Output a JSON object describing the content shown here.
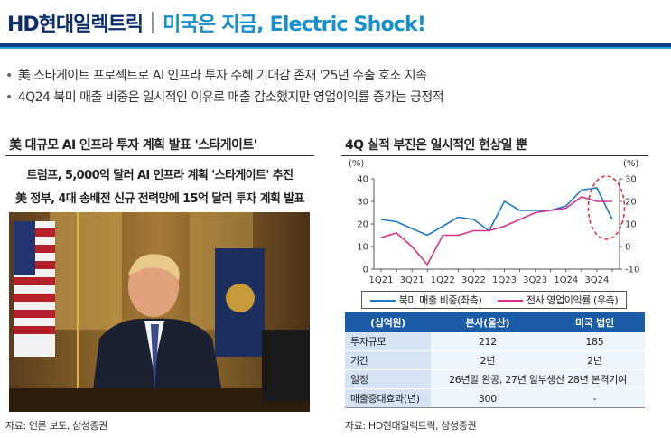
{
  "header": {
    "brand": "HD현대일렉트릭",
    "headline": "미국은 지금, Electric Shock!"
  },
  "bullets": [
    "美 스타게이트 프로젝트로 AI 인프라 투자 수혜 기대감 존재 '25년 수출 호조 지속",
    "4Q24 북미 매출 비중은 일시적인 이유로 매출 감소했지만 영업이익률 증가는 긍정적"
  ],
  "left_panel": {
    "title": "美 대규모 AI 인프라 투자 계획 발표 '스타게이트'",
    "line1": "트럼프, 5,000억 달러 AI 인프라 계획 '스타게이트' 추진",
    "line2": "美 정부, 4대 송배전 신규 전력망에 15억 달러 투자 계획 발표",
    "source": "자료: 언론 보도, 삼성증권"
  },
  "right_panel": {
    "title": "4Q 실적 부진은 일시적인 현상일 뿐",
    "source": "자료: HD현대일렉트릭, 삼성증권"
  },
  "chart_data": {
    "type": "line",
    "x": [
      "1Q21",
      "2Q21",
      "3Q21",
      "4Q21",
      "1Q22",
      "2Q22",
      "3Q22",
      "4Q22",
      "1Q23",
      "2Q23",
      "3Q23",
      "4Q23",
      "1Q24",
      "2Q24",
      "3Q24",
      "4Q24"
    ],
    "x_tick_labels": [
      "1Q21",
      "3Q21",
      "1Q22",
      "3Q22",
      "1Q23",
      "3Q23",
      "1Q24",
      "3Q24"
    ],
    "series": [
      {
        "name": "북미 매출 비중(좌측)",
        "axis": "left",
        "color": "#1f78c8",
        "values": [
          22,
          21,
          18,
          15,
          19,
          23,
          22,
          17,
          30,
          26,
          26,
          26,
          28,
          35,
          36,
          22
        ]
      },
      {
        "name": "전사 영업이익률 (우측)",
        "axis": "right",
        "color": "#d6328a",
        "values": [
          4,
          6,
          0,
          -8,
          5,
          5,
          7,
          7,
          9,
          12,
          15,
          16,
          17,
          22,
          20,
          20
        ]
      }
    ],
    "left_unit": "(%)",
    "right_unit": "(%)",
    "left_ylim": [
      0,
      40
    ],
    "left_ticks": [
      0,
      10,
      20,
      30,
      40
    ],
    "right_ylim": [
      -10,
      30
    ],
    "right_ticks": [
      -10,
      0,
      10,
      20,
      30
    ],
    "grid": false
  },
  "table": {
    "headers": [
      "(십억원)",
      "본사(울산)",
      "미국 법인"
    ],
    "rows": [
      [
        "투자규모",
        "212",
        "185"
      ],
      [
        "기간",
        "2년",
        "2년"
      ],
      [
        "일정",
        "26년말 완공, 27년 일부생산 28년 본격기여",
        ""
      ],
      [
        "매출증대효과(년)",
        "300",
        "-"
      ]
    ]
  }
}
